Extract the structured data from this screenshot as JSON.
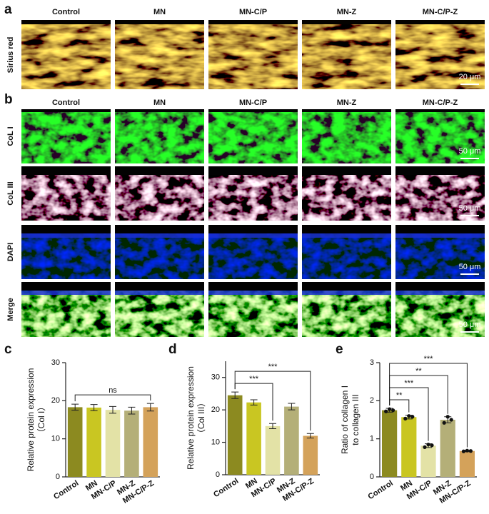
{
  "panels": {
    "a": {
      "letter": "a",
      "columns": [
        "Control",
        "MN",
        "MN-C/P",
        "MN-Z",
        "MN-C/P-Z"
      ],
      "row_label": "Sirius red",
      "scale_bar": "20 μm"
    },
    "b": {
      "letter": "b",
      "columns": [
        "Control",
        "MN",
        "MN-C/P",
        "MN-Z",
        "MN-C/P-Z"
      ],
      "rows": [
        "CoL I",
        "CoL III",
        "DAPI",
        "Merge"
      ],
      "scale_bar": "50 μm"
    }
  },
  "chart_data": [
    {
      "type": "bar",
      "letter": "c",
      "ylabel": [
        "Relative protein expression",
        "（Col I）"
      ],
      "categories": [
        "Control",
        "MN",
        "MN-C/P",
        "MN-Z",
        "MN-C/P-Z"
      ],
      "values": [
        18.3,
        18.2,
        17.6,
        17.4,
        18.3
      ],
      "errors": [
        0.8,
        0.8,
        0.9,
        0.9,
        1.0
      ],
      "colors": [
        "#8c8a20",
        "#c9c622",
        "#e3e2a6",
        "#b4af78",
        "#d4a25a"
      ],
      "ylim": [
        0,
        30
      ],
      "yticks": [
        0,
        10,
        20,
        30
      ],
      "significance": [
        {
          "from": 0,
          "to": 4,
          "label": "ns"
        }
      ]
    },
    {
      "type": "bar",
      "letter": "d",
      "ylabel": [
        "Relative protein expression",
        "（Col III）"
      ],
      "categories": [
        "Control",
        "MN",
        "MN-C/P",
        "MN-Z",
        "MN-C/P-Z"
      ],
      "values": [
        24.5,
        22.3,
        15.0,
        21.0,
        12.0
      ],
      "errors": [
        1.0,
        0.8,
        0.8,
        1.0,
        0.7
      ],
      "colors": [
        "#8c8a20",
        "#c9c622",
        "#e3e2a6",
        "#b4af78",
        "#d4a25a"
      ],
      "ylim": [
        0,
        35
      ],
      "yticks": [
        0,
        10,
        20,
        30
      ],
      "significance": [
        {
          "from": 0,
          "to": 2,
          "label": "***"
        },
        {
          "from": 0,
          "to": 4,
          "label": "***"
        }
      ]
    },
    {
      "type": "bar",
      "letter": "e",
      "ylabel": [
        "Ratio of collagen I",
        "to collagen III"
      ],
      "categories": [
        "Control",
        "MN",
        "MN-C/P",
        "MN-Z",
        "MN-C/P-Z"
      ],
      "values": [
        1.75,
        1.57,
        0.82,
        1.5,
        0.68
      ],
      "errors": [
        0.05,
        0.05,
        0.05,
        0.08,
        0.02
      ],
      "points": [
        [
          1.72,
          1.78,
          1.75
        ],
        [
          1.53,
          1.6,
          1.58
        ],
        [
          0.78,
          0.85,
          0.83
        ],
        [
          1.42,
          1.58,
          1.5
        ],
        [
          0.67,
          0.69,
          0.68
        ]
      ],
      "colors": [
        "#8c8a20",
        "#c9c622",
        "#e3e2a6",
        "#b4af78",
        "#d4a25a"
      ],
      "ylim": [
        0,
        3
      ],
      "yticks": [
        0,
        1,
        2,
        3
      ],
      "significance": [
        {
          "from": 0,
          "to": 1,
          "label": "**"
        },
        {
          "from": 0,
          "to": 2,
          "label": "***"
        },
        {
          "from": 0,
          "to": 3,
          "label": "**"
        },
        {
          "from": 0,
          "to": 4,
          "label": "***"
        }
      ]
    }
  ]
}
